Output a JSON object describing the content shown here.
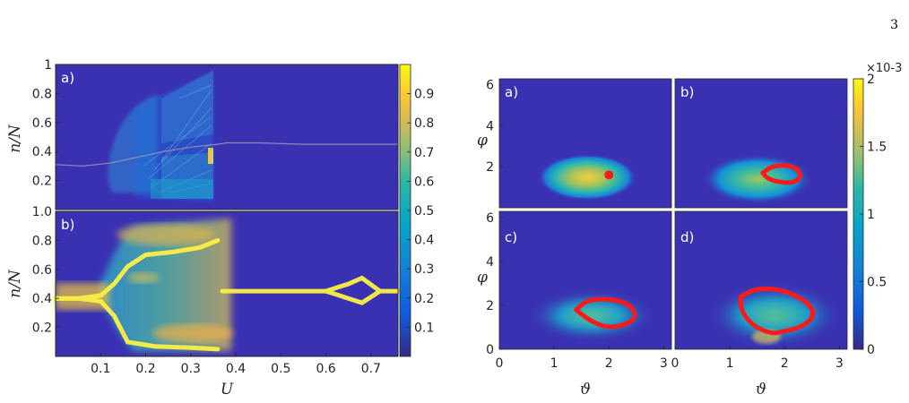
{
  "page_number": "3",
  "colors": {
    "background": "#3a31b2",
    "trajectory": "#ff1a1a"
  },
  "chart_data": [
    {
      "type": "heatmap",
      "panel_label": "a)",
      "xlabel": "",
      "ylabel": "n/N",
      "xlim": [
        0,
        0.76
      ],
      "ylim": [
        0,
        1
      ],
      "yticks": [
        "0.2",
        "0.4",
        "0.6",
        "0.8",
        "1"
      ],
      "colorbar": {
        "range": [
          0,
          1
        ],
        "ticks": [
          "0.1",
          "0.2",
          "0.3",
          "0.4",
          "0.5",
          "0.6",
          "0.7",
          "0.8",
          "0.9"
        ],
        "colormap": "parula"
      },
      "series": [
        {
          "name": "",
          "x": [
            0,
            0.06,
            0.12,
            0.18,
            0.24,
            0.3,
            0.36,
            0.38,
            0.45,
            0.55,
            0.65,
            0.76
          ],
          "y": [
            0.31,
            0.3,
            0.32,
            0.36,
            0.4,
            0.43,
            0.45,
            0.46,
            0.46,
            0.45,
            0.45,
            0.45
          ]
        }
      ]
    },
    {
      "type": "heatmap",
      "panel_label": "b)",
      "xlabel": "U",
      "ylabel": "n/N",
      "xlim": [
        0,
        0.76
      ],
      "ylim": [
        0,
        1
      ],
      "xticks": [
        "0.1",
        "0.2",
        "0.3",
        "0.4",
        "0.5",
        "0.6",
        "0.7"
      ],
      "yticks": [
        "0.2",
        "0.4",
        "0.6",
        "0.8",
        "1.0"
      ],
      "series": [
        {
          "name": "",
          "x": [
            0,
            0.05,
            0.1,
            0.13,
            0.16,
            0.2,
            0.26,
            0.32,
            0.36
          ],
          "y": [
            0.4,
            0.4,
            0.42,
            0.5,
            0.62,
            0.7,
            0.72,
            0.75,
            0.8
          ]
        },
        {
          "name": "",
          "x": [
            0,
            0.05,
            0.1,
            0.13,
            0.16,
            0.22,
            0.3,
            0.36
          ],
          "y": [
            0.4,
            0.4,
            0.38,
            0.28,
            0.1,
            0.07,
            0.06,
            0.05
          ]
        },
        {
          "name": "",
          "x": [
            0.37,
            0.45,
            0.55,
            0.6,
            0.65,
            0.68,
            0.72,
            0.76
          ],
          "y": [
            0.45,
            0.45,
            0.45,
            0.45,
            0.5,
            0.54,
            0.45,
            0.45
          ]
        },
        {
          "name": "",
          "x": [
            0.6,
            0.65,
            0.68,
            0.72
          ],
          "y": [
            0.45,
            0.4,
            0.37,
            0.45
          ]
        }
      ]
    },
    {
      "type": "heatmap",
      "panel_label": "a)",
      "xlabel": "",
      "ylabel": "φ",
      "xlim": [
        0,
        3.14159
      ],
      "ylim": [
        0,
        6.28318
      ],
      "yticks": [
        "2",
        "4",
        "6"
      ],
      "colorbar": {
        "range": [
          0,
          0.002
        ],
        "ticks": [
          "0",
          "0.5",
          "1",
          "1.5",
          "2"
        ],
        "multiplier": "×10-3",
        "colormap": "parula"
      },
      "trajectory": {
        "kind": "point",
        "x": [
          2.0
        ],
        "y": [
          1.6
        ]
      }
    },
    {
      "type": "heatmap",
      "panel_label": "b)",
      "xlabel": "",
      "ylabel": "",
      "xlim": [
        0,
        3.14159
      ],
      "ylim": [
        0,
        6.28318
      ],
      "trajectory": {
        "kind": "loop",
        "x": [
          1.6,
          1.75,
          2.0,
          2.25,
          2.3,
          2.15,
          1.9,
          1.7
        ],
        "y": [
          1.7,
          2.0,
          2.1,
          1.9,
          1.5,
          1.2,
          1.25,
          1.4
        ]
      }
    },
    {
      "type": "heatmap",
      "panel_label": "c)",
      "xlabel": "ϑ",
      "ylabel": "φ",
      "xlim": [
        0,
        3.14159
      ],
      "ylim": [
        0,
        6.28318
      ],
      "xticks": [
        "0",
        "1",
        "2",
        "3"
      ],
      "yticks": [
        "0",
        "2",
        "4",
        "6"
      ],
      "trajectory": {
        "kind": "loop",
        "x": [
          1.4,
          1.6,
          2.0,
          2.35,
          2.5,
          2.4,
          2.0,
          1.65
        ],
        "y": [
          1.8,
          2.25,
          2.3,
          2.1,
          1.6,
          1.2,
          0.95,
          1.3
        ]
      }
    },
    {
      "type": "heatmap",
      "panel_label": "d)",
      "xlabel": "ϑ",
      "ylabel": "",
      "xlim": [
        0,
        3.14159
      ],
      "ylim": [
        0,
        6.28318
      ],
      "xticks": [
        "0",
        "1",
        "2",
        "3"
      ],
      "trajectory": {
        "kind": "loop",
        "x": [
          1.2,
          1.5,
          2.0,
          2.45,
          2.55,
          2.3,
          1.95,
          1.75,
          1.4,
          1.2
        ],
        "y": [
          2.4,
          2.8,
          2.7,
          2.1,
          1.5,
          1.0,
          0.8,
          0.7,
          1.1,
          1.8
        ]
      }
    }
  ]
}
